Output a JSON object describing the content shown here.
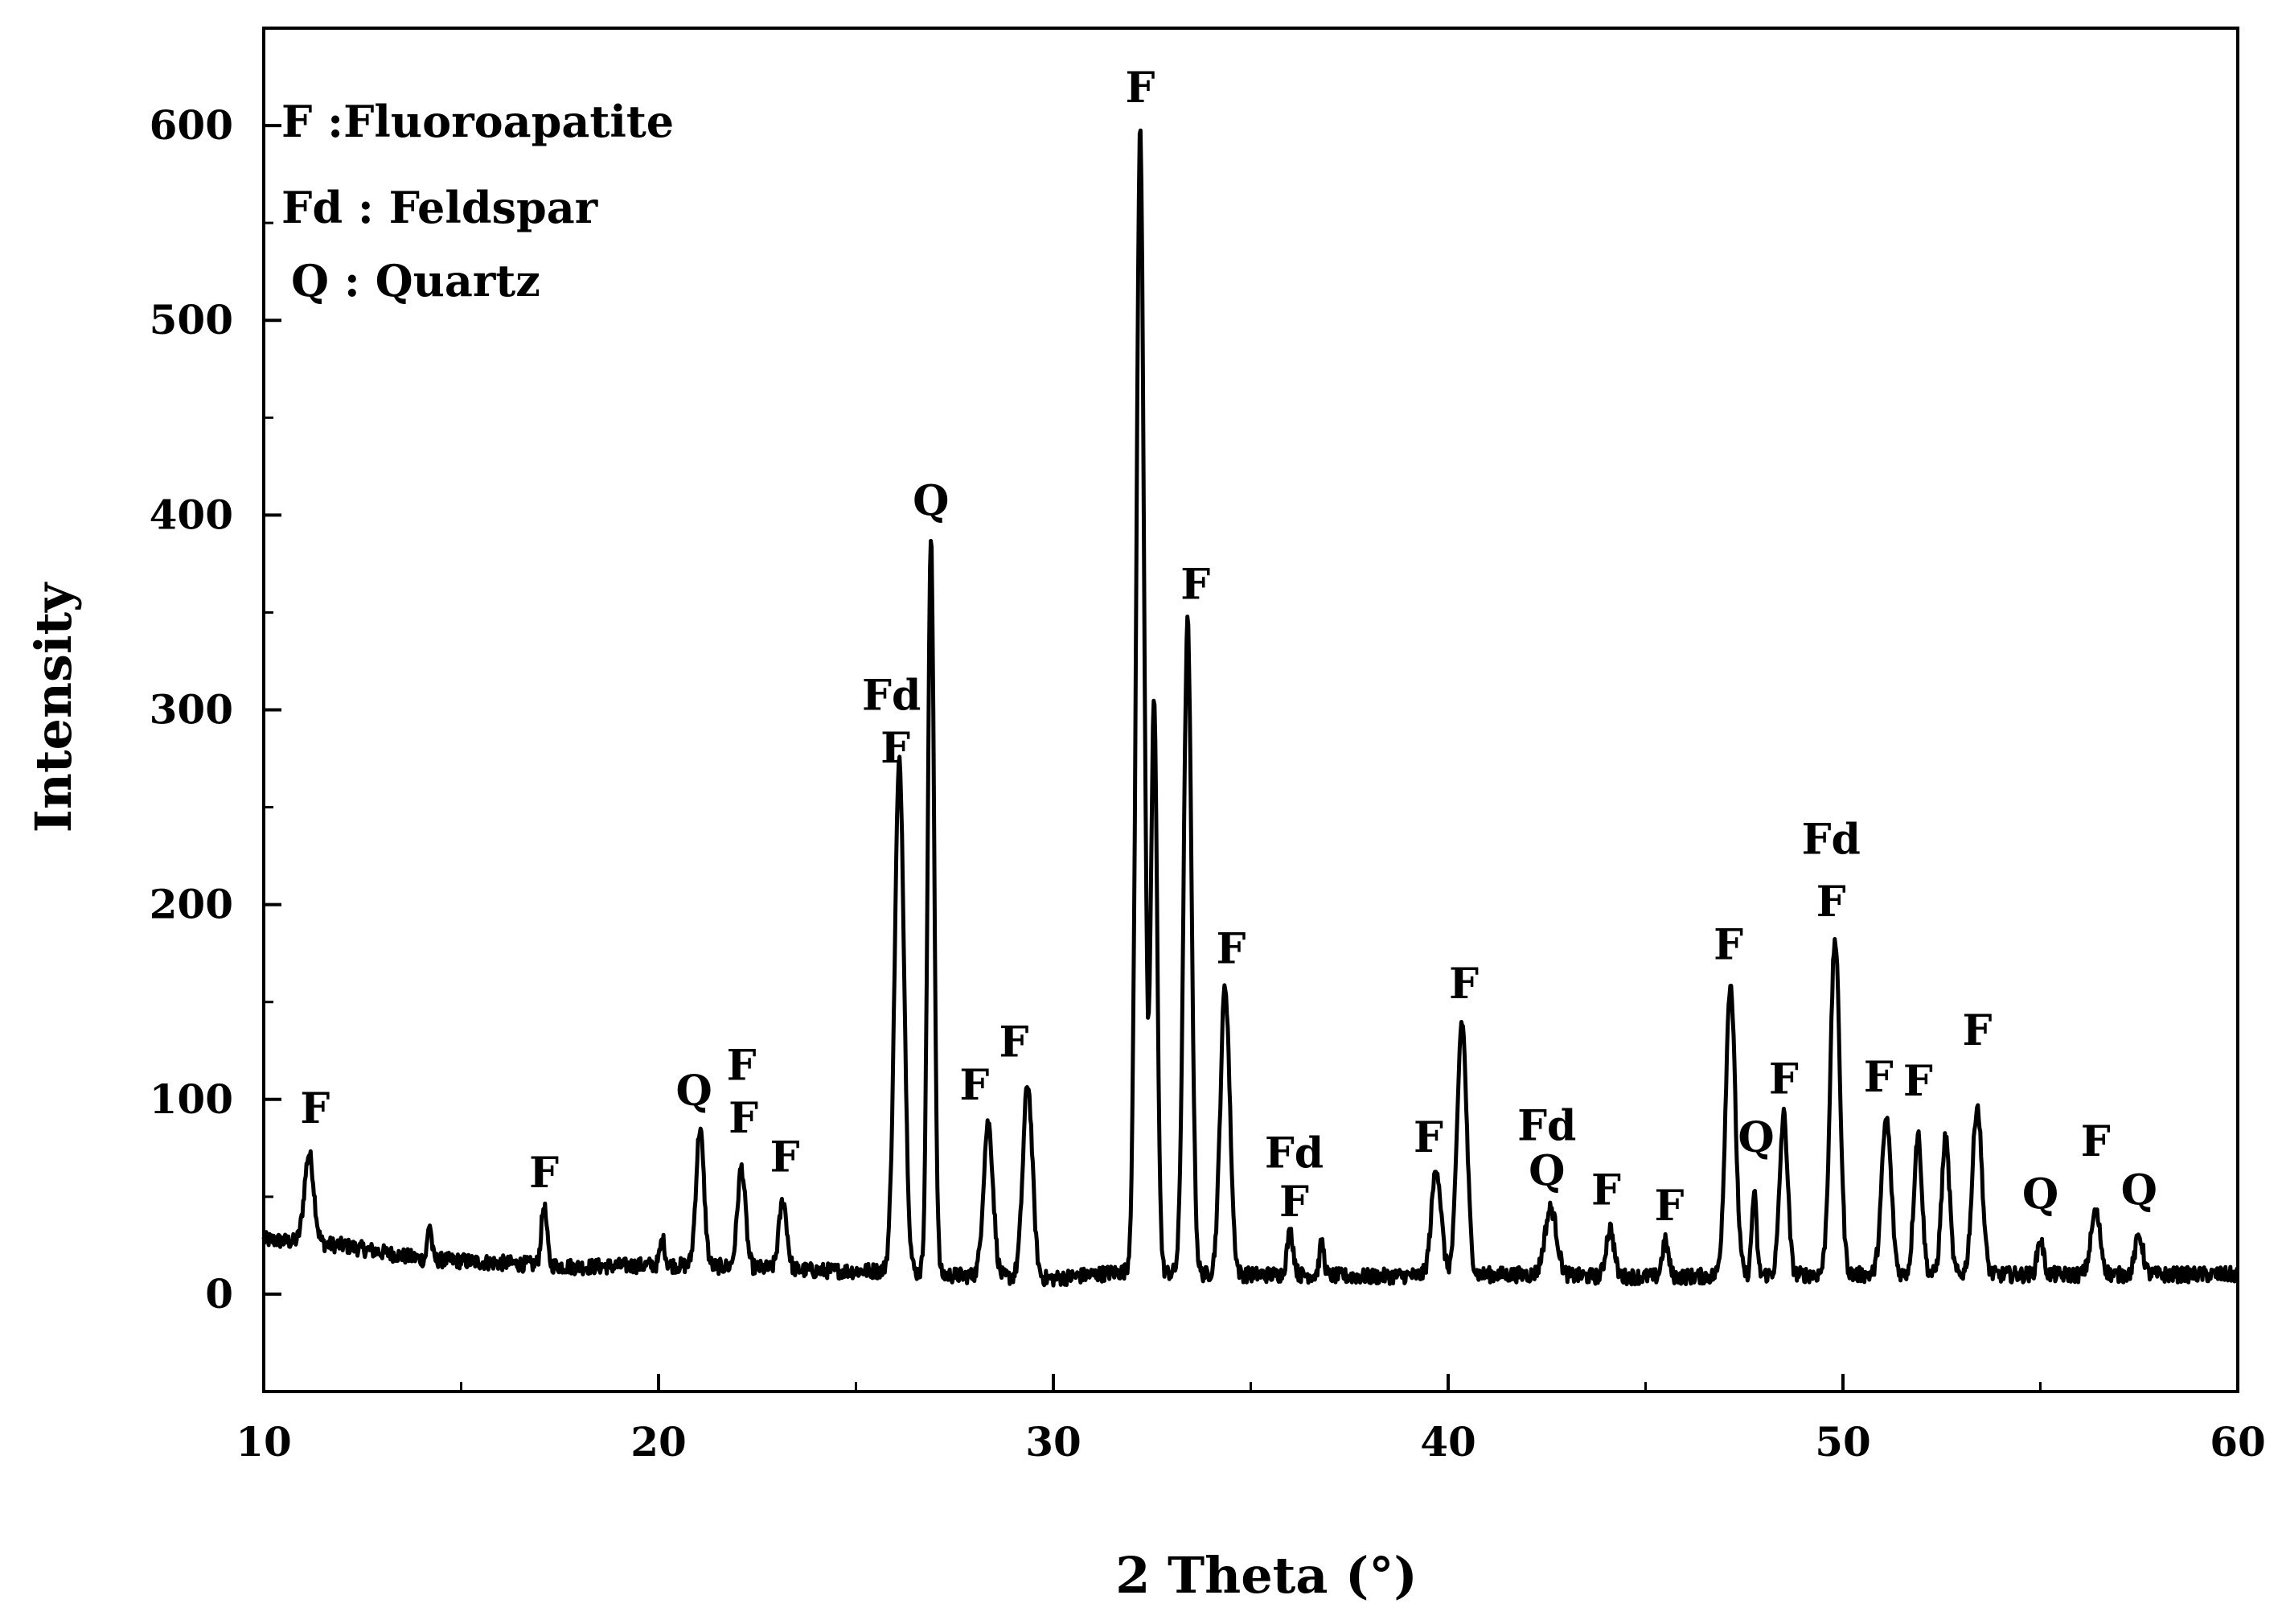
{
  "chart_data": {
    "type": "line",
    "xlabel": "2 Theta (°)",
    "ylabel": "Intensity",
    "xlim": [
      10,
      60
    ],
    "ylim": [
      -50,
      650
    ],
    "x_ticks": [
      10,
      20,
      30,
      40,
      50,
      60
    ],
    "y_ticks": [
      0,
      100,
      200,
      300,
      400,
      500,
      600
    ],
    "x_tick_labels": [
      "10",
      "20",
      "30",
      "40",
      "50",
      "60"
    ],
    "y_tick_labels": [
      "0",
      "100",
      "200",
      "300",
      "400",
      "500",
      "600"
    ],
    "grid": false,
    "legend": {
      "placement": "top-left",
      "entries": [
        "F :Fluoroapatite",
        "Fd : Feldspar",
        "Q : Quartz"
      ]
    },
    "series": [
      {
        "color": "#000000",
        "baseline": [
          [
            10,
            28
          ],
          [
            12,
            25
          ],
          [
            14,
            18
          ],
          [
            16,
            16
          ],
          [
            18,
            14
          ],
          [
            20,
            15
          ],
          [
            22,
            14
          ],
          [
            24,
            12
          ],
          [
            26,
            12
          ],
          [
            27,
            10
          ],
          [
            30,
            8
          ],
          [
            32,
            12
          ],
          [
            34,
            10
          ],
          [
            36,
            10
          ],
          [
            38,
            9
          ],
          [
            40,
            10
          ],
          [
            42,
            10
          ],
          [
            44,
            9
          ],
          [
            46,
            9
          ],
          [
            48,
            10
          ],
          [
            50,
            10
          ],
          [
            52,
            10
          ],
          [
            54,
            10
          ],
          [
            56,
            10
          ],
          [
            58,
            10
          ],
          [
            60,
            10
          ]
        ],
        "peaks": [
          {
            "x": 11.15,
            "y": 72,
            "w": 0.12
          },
          {
            "x": 14.2,
            "y": 36,
            "w": 0.05
          },
          {
            "x": 17.1,
            "y": 45,
            "w": 0.07
          },
          {
            "x": 20.1,
            "y": 28,
            "w": 0.06
          },
          {
            "x": 21.05,
            "y": 85,
            "w": 0.1
          },
          {
            "x": 22.1,
            "y": 65,
            "w": 0.1
          },
          {
            "x": 23.15,
            "y": 48,
            "w": 0.1
          },
          {
            "x": 26.1,
            "y": 273,
            "w": 0.12
          },
          {
            "x": 26.9,
            "y": 388,
            "w": 0.08
          },
          {
            "x": 28.35,
            "y": 88,
            "w": 0.12
          },
          {
            "x": 29.35,
            "y": 108,
            "w": 0.12
          },
          {
            "x": 32.2,
            "y": 598,
            "w": 0.1
          },
          {
            "x": 32.55,
            "y": 305,
            "w": 0.08
          },
          {
            "x": 33.4,
            "y": 345,
            "w": 0.1
          },
          {
            "x": 34.35,
            "y": 158,
            "w": 0.12
          },
          {
            "x": 36.0,
            "y": 32,
            "w": 0.08
          },
          {
            "x": 36.8,
            "y": 26,
            "w": 0.06
          },
          {
            "x": 39.7,
            "y": 65,
            "w": 0.12
          },
          {
            "x": 40.35,
            "y": 140,
            "w": 0.12
          },
          {
            "x": 42.6,
            "y": 44,
            "w": 0.15
          },
          {
            "x": 44.1,
            "y": 34,
            "w": 0.1
          },
          {
            "x": 45.5,
            "y": 27,
            "w": 0.08
          },
          {
            "x": 47.15,
            "y": 160,
            "w": 0.12
          },
          {
            "x": 47.75,
            "y": 52,
            "w": 0.06
          },
          {
            "x": 48.5,
            "y": 92,
            "w": 0.1
          },
          {
            "x": 49.8,
            "y": 182,
            "w": 0.12
          },
          {
            "x": 51.1,
            "y": 90,
            "w": 0.12
          },
          {
            "x": 51.9,
            "y": 82,
            "w": 0.1
          },
          {
            "x": 52.6,
            "y": 80,
            "w": 0.1
          },
          {
            "x": 53.4,
            "y": 97,
            "w": 0.12
          },
          {
            "x": 55.0,
            "y": 28,
            "w": 0.08
          },
          {
            "x": 56.4,
            "y": 42,
            "w": 0.12
          },
          {
            "x": 57.5,
            "y": 30,
            "w": 0.1
          }
        ],
        "noise_amplitude": 4
      }
    ],
    "annotations": [
      {
        "text": "F",
        "x": 11.3,
        "y": 88
      },
      {
        "text": "F",
        "x": 17.1,
        "y": 55
      },
      {
        "text": "Q",
        "x": 20.9,
        "y": 97
      },
      {
        "text": "F",
        "x": 22.1,
        "y": 110
      },
      {
        "text": "F",
        "x": 22.15,
        "y": 83
      },
      {
        "text": "F",
        "x": 23.2,
        "y": 63
      },
      {
        "text": "Fd",
        "x": 25.9,
        "y": 300
      },
      {
        "text": "F",
        "x": 26.0,
        "y": 273
      },
      {
        "text": "Q",
        "x": 26.9,
        "y": 400
      },
      {
        "text": "F",
        "x": 28.0,
        "y": 100
      },
      {
        "text": "F",
        "x": 29.0,
        "y": 122
      },
      {
        "text": "F",
        "x": 32.2,
        "y": 612
      },
      {
        "text": "F",
        "x": 33.6,
        "y": 357
      },
      {
        "text": "F",
        "x": 34.5,
        "y": 170
      },
      {
        "text": "Fd",
        "x": 36.1,
        "y": 65
      },
      {
        "text": "F",
        "x": 36.1,
        "y": 40
      },
      {
        "text": "F",
        "x": 39.5,
        "y": 73
      },
      {
        "text": "F",
        "x": 40.4,
        "y": 152
      },
      {
        "text": "Fd",
        "x": 42.5,
        "y": 79
      },
      {
        "text": "Q",
        "x": 42.5,
        "y": 56
      },
      {
        "text": "F",
        "x": 44.0,
        "y": 46
      },
      {
        "text": "F",
        "x": 45.6,
        "y": 38
      },
      {
        "text": "F",
        "x": 47.1,
        "y": 172
      },
      {
        "text": "Q",
        "x": 47.8,
        "y": 73
      },
      {
        "text": "F",
        "x": 48.5,
        "y": 103
      },
      {
        "text": "Fd",
        "x": 49.7,
        "y": 226
      },
      {
        "text": "F",
        "x": 49.7,
        "y": 194
      },
      {
        "text": "F",
        "x": 50.9,
        "y": 104
      },
      {
        "text": "F",
        "x": 51.9,
        "y": 102
      },
      {
        "text": "F",
        "x": 53.4,
        "y": 128
      },
      {
        "text": "Q",
        "x": 55.0,
        "y": 44
      },
      {
        "text": "F",
        "x": 56.4,
        "y": 71
      },
      {
        "text": "Q",
        "x": 57.5,
        "y": 46
      }
    ]
  }
}
